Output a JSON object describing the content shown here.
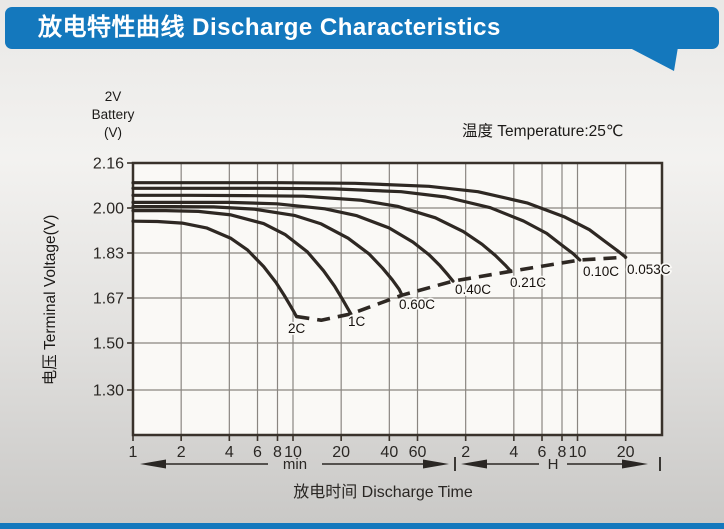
{
  "header": {
    "title": "放电特性曲线 Discharge Characteristics"
  },
  "colors": {
    "accent_blue": "#1478bd",
    "curve": "#2e2823",
    "grid": "#8a8681",
    "border": "#39322b",
    "plot_bg": "#faf9f6",
    "text": "#2a2724"
  },
  "battery_label": {
    "lines": [
      "2V",
      "Battery",
      "(V)"
    ]
  },
  "temperature_note": "温度 Temperature:25℃",
  "y_axis": {
    "title": "电压 Terminal Voltage(V)",
    "tick_labels": [
      "2.16",
      "2.00",
      "1.83",
      "1.67",
      "1.50",
      "1.30"
    ],
    "tick_values": [
      2.16,
      2.0,
      1.83,
      1.67,
      1.5,
      1.3
    ]
  },
  "x_axis": {
    "title": "放电时间 Discharge Time",
    "segments": [
      {
        "unit": "min",
        "tick_labels": [
          "1",
          "2",
          "4",
          "6",
          "8",
          "10",
          "20",
          "40",
          "60"
        ],
        "tick_minutes": [
          1,
          2,
          4,
          6,
          8,
          10,
          20,
          40,
          60
        ]
      },
      {
        "unit": "H",
        "tick_labels": [
          "2",
          "4",
          "6",
          "8",
          "10",
          "20"
        ],
        "tick_minutes": [
          120,
          240,
          360,
          480,
          600,
          1200
        ]
      }
    ]
  },
  "chart_data": {
    "type": "line",
    "x_scale": "log",
    "x_range_minutes": [
      1,
      2000
    ],
    "y_range_volts": [
      1.1,
      2.16
    ],
    "grid": true,
    "title": "放电特性曲线 Discharge Characteristics",
    "xlabel": "放电时间 Discharge Time",
    "ylabel": "电压 Terminal Voltage(V)",
    "note": "温度 Temperature:25℃",
    "series": [
      {
        "name": "2C",
        "label_xy": [
          288,
          333
        ],
        "points_t_min_V": [
          [
            1,
            1.95
          ],
          [
            1.42,
            1.949
          ],
          [
            2.03,
            1.943
          ],
          [
            2.88,
            1.925
          ],
          [
            4.1,
            1.885
          ],
          [
            5.18,
            1.842
          ],
          [
            6.55,
            1.782
          ],
          [
            7.83,
            1.725
          ],
          [
            8.82,
            1.679
          ],
          [
            9.56,
            1.644
          ],
          [
            10.14,
            1.617
          ],
          [
            10.5,
            1.6
          ]
        ]
      },
      {
        "name": "1C",
        "label_xy": [
          348,
          326
        ],
        "points_t_min_V": [
          [
            1,
            1.99
          ],
          [
            1.6,
            1.99
          ],
          [
            2.56,
            1.987
          ],
          [
            4.1,
            1.974
          ],
          [
            6.55,
            1.941
          ],
          [
            8.97,
            1.899
          ],
          [
            12.3,
            1.834
          ],
          [
            15.5,
            1.767
          ],
          [
            18.2,
            1.712
          ],
          [
            20.3,
            1.667
          ],
          [
            21.9,
            1.632
          ],
          [
            23,
            1.61
          ]
        ]
      },
      {
        "name": "0.60C",
        "label_xy": [
          399,
          309
        ],
        "points_t_min_V": [
          [
            1,
            2.005
          ],
          [
            1.79,
            2.005
          ],
          [
            3.19,
            2.004
          ],
          [
            5.7,
            1.996
          ],
          [
            10.2,
            1.972
          ],
          [
            15.0,
            1.94
          ],
          [
            22.1,
            1.886
          ],
          [
            29.8,
            1.827
          ],
          [
            36.3,
            1.776
          ],
          [
            41.7,
            1.735
          ],
          [
            46.1,
            1.701
          ],
          [
            48,
            1.68
          ]
        ]
      },
      {
        "name": "0.40C",
        "label_xy": [
          455,
          294
        ],
        "points_t_min_V": [
          [
            1,
            2.02
          ],
          [
            2.0,
            2.02
          ],
          [
            3.98,
            2.02
          ],
          [
            7.94,
            2.015
          ],
          [
            15.8,
            1.997
          ],
          [
            25.1,
            1.971
          ],
          [
            39.8,
            1.925
          ],
          [
            56.2,
            1.871
          ],
          [
            70.8,
            1.824
          ],
          [
            83.2,
            1.784
          ],
          [
            93.3,
            1.751
          ],
          [
            100,
            1.73
          ]
        ]
      },
      {
        "name": "0.21C",
        "label_xy": [
          510,
          287
        ],
        "points_t_min_V": [
          [
            1,
            2.045
          ],
          [
            2.26,
            2.045
          ],
          [
            5.11,
            2.044
          ],
          [
            11.6,
            2.042
          ],
          [
            26.2,
            2.028
          ],
          [
            45,
            2.006
          ],
          [
            77.6,
            1.963
          ],
          [
            116,
            1.911
          ],
          [
            152,
            1.863
          ],
          [
            184,
            1.821
          ],
          [
            212,
            1.787
          ],
          [
            230,
            1.765
          ]
        ]
      },
      {
        "name": "0.10C",
        "label_xy": [
          583,
          276
        ],
        "points_t_min_V": [
          [
            1,
            2.07
          ],
          [
            2.62,
            2.07
          ],
          [
            6.89,
            2.07
          ],
          [
            18.1,
            2.068
          ],
          [
            47.4,
            2.058
          ],
          [
            89.9,
            2.039
          ],
          [
            171,
            2.001
          ],
          [
            276,
            1.951
          ],
          [
            385,
            1.904
          ],
          [
            473,
            1.862
          ],
          [
            563,
            1.828
          ],
          [
            620,
            1.805
          ]
        ]
      },
      {
        "name": "0.053C",
        "label_xy": [
          627,
          274
        ],
        "points_t_min_V": [
          [
            1,
            2.09
          ],
          [
            2.9,
            2.09
          ],
          [
            8.41,
            2.09
          ],
          [
            24.4,
            2.088
          ],
          [
            70.7,
            2.077
          ],
          [
            143,
            2.058
          ],
          [
            290,
            2.018
          ],
          [
            495,
            1.967
          ],
          [
            712,
            1.918
          ],
          [
            886,
            1.875
          ],
          [
            1065,
            1.839
          ],
          [
            1200,
            1.815
          ]
        ]
      }
    ],
    "cutoff_locus": {
      "style": "dashed",
      "points_t_min_V": [
        [
          10.5,
          1.6
        ],
        [
          15,
          1.586
        ],
        [
          23,
          1.61
        ],
        [
          48,
          1.68
        ],
        [
          100,
          1.73
        ],
        [
          230,
          1.765
        ],
        [
          620,
          1.805
        ],
        [
          1200,
          1.815
        ]
      ]
    }
  }
}
